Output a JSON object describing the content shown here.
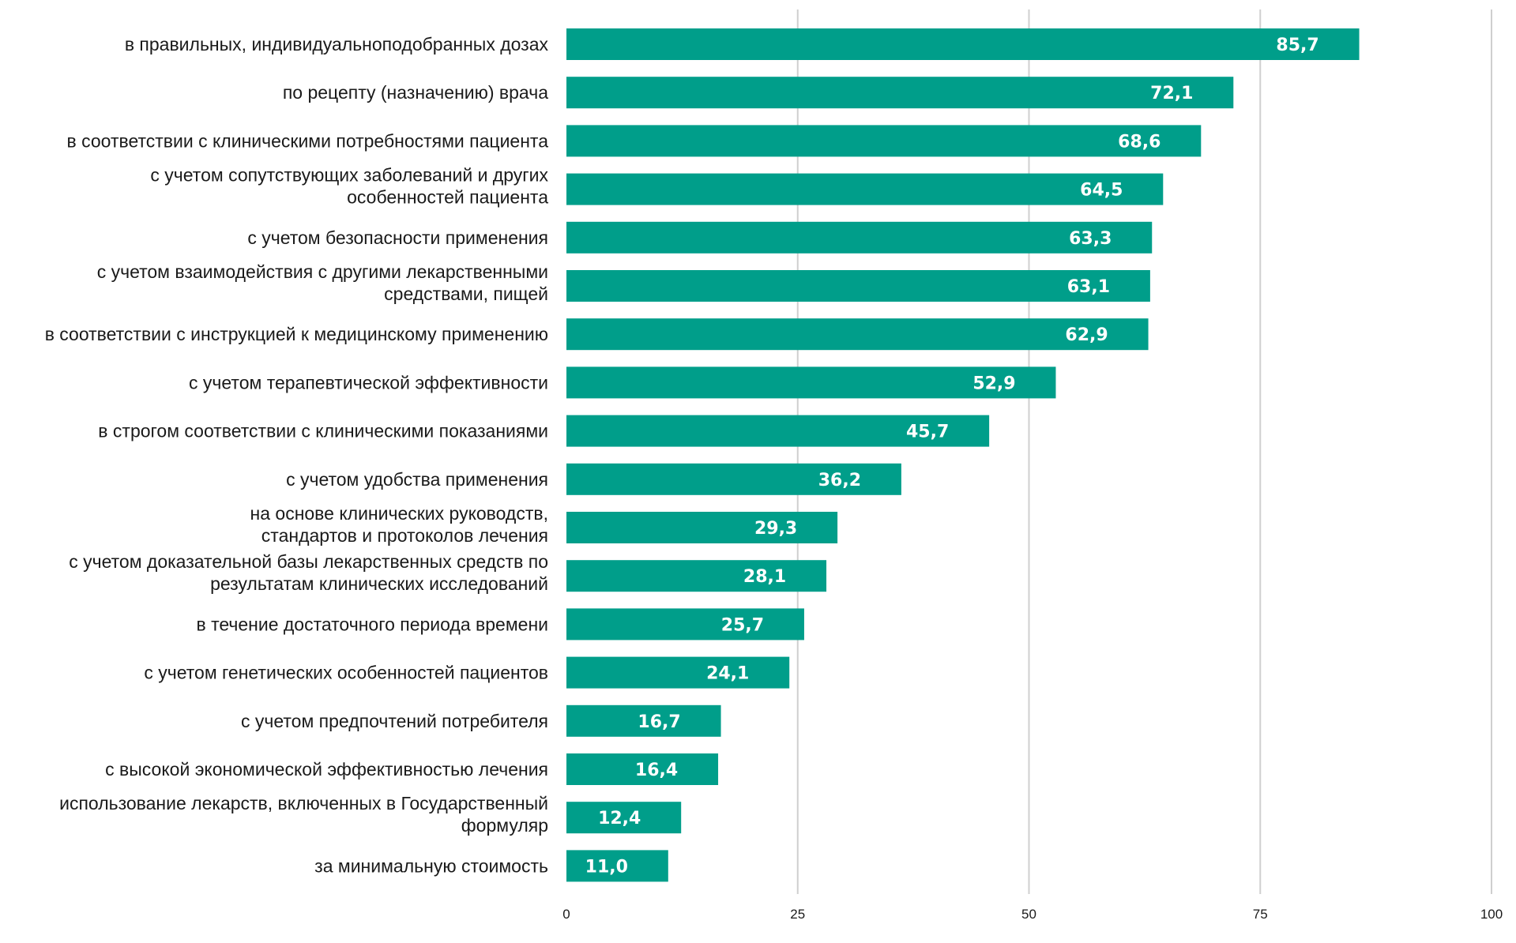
{
  "chart_data": {
    "type": "bar",
    "orientation": "horizontal",
    "title": "",
    "xlabel": "",
    "ylabel": "",
    "xlim": [
      0,
      100
    ],
    "ticks": [
      0,
      25,
      50,
      75,
      100
    ],
    "grid": true,
    "legend": "none",
    "bar_color": "#009e8a",
    "value_label_color": "#ffffff",
    "categories": [
      [
        "в правильных, индивидуальноподобранных дозах"
      ],
      [
        "по рецепту (назначению) врача"
      ],
      [
        "в соответствии с клиническими потребностями пациента"
      ],
      [
        "с учетом сопутствующих заболеваний и других",
        "особенностей пациента"
      ],
      [
        "с учетом безопасности применения"
      ],
      [
        "с учетом взаимодействия с другими лекарственными",
        "средствами, пищей"
      ],
      [
        "в соответствии с инструкцией к медицинскому применению"
      ],
      [
        "с учетом терапевтической эффективности"
      ],
      [
        "в строгом соответствии с клиническими показаниями"
      ],
      [
        "с учетом удобства применения"
      ],
      [
        "на основе клинических руководств,",
        "стандартов и протоколов лечения"
      ],
      [
        "с учетом доказательной базы лекарственных средств по",
        "результатам клинических исследований"
      ],
      [
        "в течение достаточного периода времени"
      ],
      [
        "с учетом генетических особенностей пациентов"
      ],
      [
        "с учетом предпочтений потребителя"
      ],
      [
        "с высокой экономической эффективностью лечения"
      ],
      [
        "использование лекарств, включенных в Государственный",
        "формуляр"
      ],
      [
        "за минимальную стоимость"
      ]
    ],
    "values": [
      85.7,
      72.1,
      68.6,
      64.5,
      63.3,
      63.1,
      62.9,
      52.9,
      45.7,
      36.2,
      29.3,
      28.1,
      25.7,
      24.1,
      16.7,
      16.4,
      12.4,
      11.0
    ],
    "value_labels": [
      "85,7",
      "72,1",
      "68,6",
      "64,5",
      "63,3",
      "63,1",
      "62,9",
      "52,9",
      "45,7",
      "36,2",
      "29,3",
      "28,1",
      "25,7",
      "24,1",
      "16,7",
      "16,4",
      "12,4",
      "11,0"
    ]
  }
}
